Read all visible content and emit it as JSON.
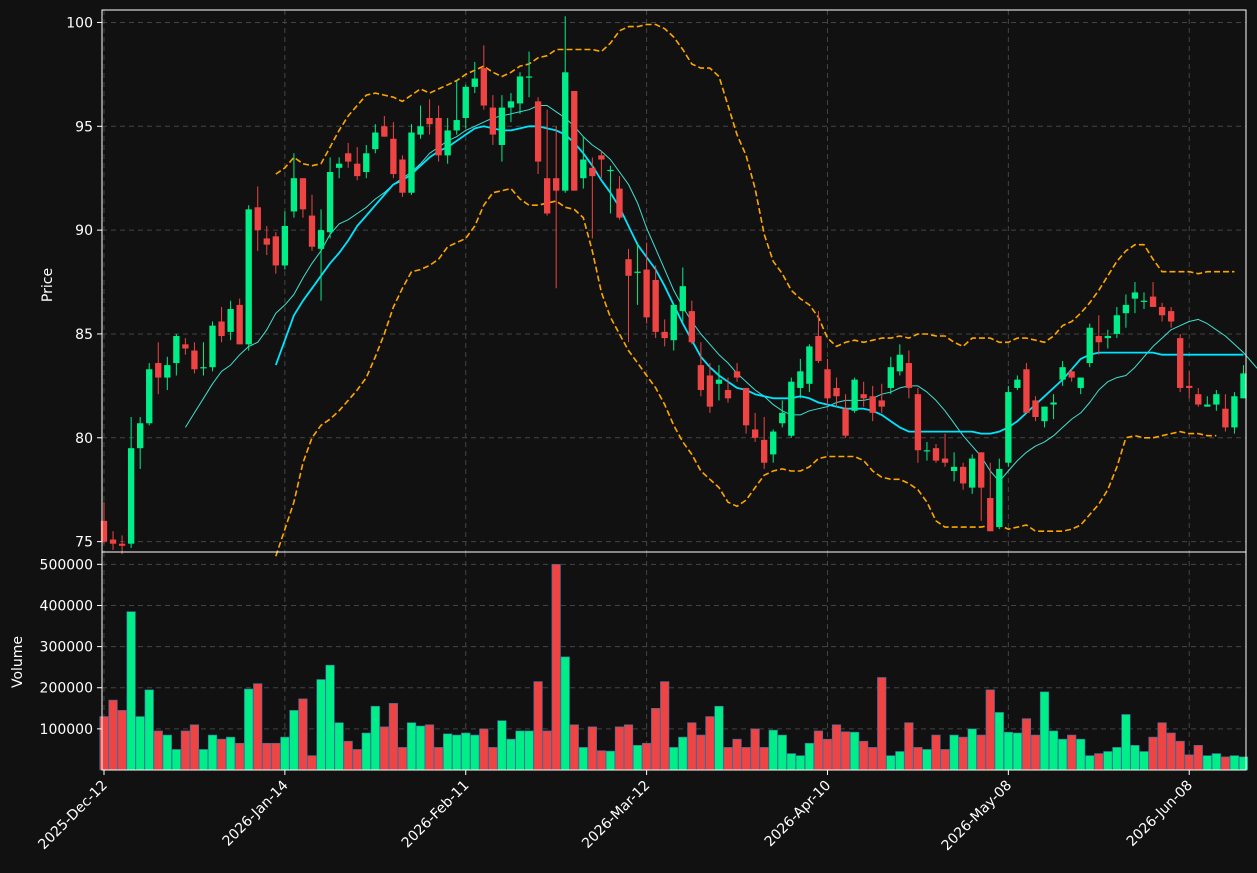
{
  "chart_data": {
    "type": "candlestick",
    "title": "",
    "price_panel": {
      "ylabel": "Price",
      "ylim": [
        74.5,
        100.6
      ],
      "yticks": [
        75,
        80,
        85,
        90,
        95,
        100
      ],
      "grid": true
    },
    "volume_panel": {
      "ylabel": "Volume",
      "ylim": [
        0,
        530000
      ],
      "yticks": [
        100000,
        200000,
        300000,
        400000,
        500000
      ],
      "grid": true
    },
    "x_tick_labels": [
      "2025-Dec-12",
      "2026-Jan-14",
      "2026-Feb-11",
      "2026-Mar-12",
      "2026-Apr-10",
      "2026-May-08",
      "2026-Jun-08"
    ],
    "x_tick_index": [
      0,
      20,
      40,
      60,
      80,
      100,
      120
    ],
    "colors": {
      "up": "#00ee88",
      "down": "#ee4444",
      "ma_fast": "#40e0d0",
      "ma_slow": "#00e5ff",
      "bands": "#ffa500",
      "background": "#111111",
      "grid": "#444444"
    },
    "ohlcv": [
      [
        76.0,
        76.9,
        74.9,
        75.0,
        130000
      ],
      [
        75.1,
        75.5,
        74.6,
        74.9,
        170000
      ],
      [
        74.9,
        75.3,
        74.4,
        74.8,
        145000
      ],
      [
        74.9,
        81.0,
        74.7,
        79.5,
        385000
      ],
      [
        79.5,
        81.0,
        78.5,
        80.7,
        130000
      ],
      [
        80.7,
        83.6,
        80.6,
        83.3,
        195000
      ],
      [
        83.6,
        84.6,
        82.1,
        82.9,
        95000
      ],
      [
        82.9,
        83.9,
        82.3,
        83.5,
        85000
      ],
      [
        83.6,
        85.0,
        83.0,
        84.9,
        50000
      ],
      [
        84.5,
        84.8,
        84.0,
        84.3,
        95000
      ],
      [
        84.2,
        84.6,
        83.1,
        83.3,
        110000
      ],
      [
        83.4,
        84.6,
        83.0,
        83.4,
        50000
      ],
      [
        83.4,
        85.6,
        83.2,
        85.4,
        85000
      ],
      [
        85.6,
        86.3,
        84.6,
        84.9,
        75000
      ],
      [
        85.1,
        86.6,
        84.7,
        86.2,
        80000
      ],
      [
        86.4,
        86.7,
        84.5,
        84.5,
        65000
      ],
      [
        84.5,
        91.2,
        84.2,
        91.0,
        197000
      ],
      [
        91.1,
        92.1,
        89.0,
        90.0,
        210000
      ],
      [
        89.6,
        90.2,
        88.8,
        89.3,
        65000
      ],
      [
        89.7,
        89.9,
        87.9,
        88.3,
        65000
      ],
      [
        88.3,
        90.9,
        88.1,
        90.2,
        80000
      ],
      [
        90.9,
        93.7,
        90.6,
        92.5,
        145000
      ],
      [
        92.5,
        92.5,
        90.6,
        91.0,
        173000
      ],
      [
        90.7,
        91.7,
        89.0,
        89.2,
        35000
      ],
      [
        89.1,
        91.0,
        86.6,
        90.0,
        220000
      ],
      [
        89.9,
        93.5,
        89.6,
        92.8,
        255000
      ],
      [
        93.0,
        93.5,
        92.5,
        93.2,
        115000
      ],
      [
        93.7,
        94.2,
        93.0,
        93.3,
        70000
      ],
      [
        93.2,
        94.0,
        92.4,
        92.6,
        50000
      ],
      [
        92.8,
        94.1,
        92.5,
        93.7,
        90000
      ],
      [
        93.9,
        95.1,
        93.7,
        94.7,
        155000
      ],
      [
        95.0,
        95.5,
        94.5,
        94.5,
        105000
      ],
      [
        94.4,
        95.2,
        92.5,
        92.7,
        162000
      ],
      [
        93.4,
        93.6,
        91.6,
        91.8,
        55000
      ],
      [
        91.8,
        95.1,
        91.7,
        94.7,
        115000
      ],
      [
        94.6,
        96.0,
        94.4,
        95.0,
        107000
      ],
      [
        95.4,
        96.3,
        94.6,
        95.1,
        110000
      ],
      [
        95.4,
        96.0,
        93.3,
        93.6,
        55000
      ],
      [
        93.6,
        95.4,
        93.2,
        94.8,
        88000
      ],
      [
        94.8,
        97.2,
        94.6,
        95.3,
        85000
      ],
      [
        95.4,
        97.0,
        94.9,
        96.9,
        90000
      ],
      [
        96.9,
        98.1,
        96.6,
        97.3,
        85000
      ],
      [
        97.8,
        98.9,
        95.8,
        96.0,
        100000
      ],
      [
        95.9,
        96.5,
        94.1,
        94.6,
        55000
      ],
      [
        94.1,
        96.5,
        93.3,
        95.9,
        120000
      ],
      [
        95.9,
        96.6,
        95.2,
        96.2,
        75000
      ],
      [
        96.1,
        97.6,
        95.6,
        97.4,
        95000
      ],
      [
        97.4,
        98.6,
        96.4,
        97.4,
        95000
      ],
      [
        96.2,
        96.4,
        92.7,
        93.3,
        215000
      ],
      [
        92.5,
        95.8,
        90.7,
        90.8,
        95000
      ],
      [
        92.5,
        95.0,
        87.2,
        91.9,
        500000
      ],
      [
        91.9,
        100.3,
        91.8,
        97.6,
        275000
      ],
      [
        96.7,
        96.7,
        91.9,
        91.9,
        110000
      ],
      [
        92.5,
        94.5,
        92.0,
        93.4,
        55000
      ],
      [
        93.0,
        93.5,
        89.6,
        92.6,
        105000
      ],
      [
        93.6,
        93.8,
        92.5,
        93.4,
        47000
      ],
      [
        92.9,
        93.1,
        90.8,
        92.9,
        46000
      ],
      [
        92.0,
        92.6,
        90.5,
        90.6,
        105000
      ],
      [
        88.6,
        89.1,
        84.6,
        87.8,
        110000
      ],
      [
        88.0,
        89.4,
        86.4,
        88.0,
        60000
      ],
      [
        88.1,
        89.4,
        85.5,
        85.8,
        65000
      ],
      [
        87.6,
        88.3,
        84.8,
        85.1,
        150000
      ],
      [
        85.1,
        85.7,
        84.4,
        84.8,
        215000
      ],
      [
        84.7,
        86.2,
        84.2,
        86.4,
        55000
      ],
      [
        86.1,
        88.2,
        85.6,
        87.3,
        80000
      ],
      [
        86.1,
        86.6,
        84.5,
        84.6,
        115000
      ],
      [
        83.5,
        84.6,
        82.0,
        82.3,
        85000
      ],
      [
        83.0,
        83.6,
        81.2,
        81.5,
        130000
      ],
      [
        82.6,
        83.5,
        81.8,
        82.8,
        155000
      ],
      [
        82.3,
        82.9,
        81.7,
        81.9,
        55000
      ],
      [
        83.2,
        83.6,
        82.7,
        82.9,
        75000
      ],
      [
        82.4,
        82.4,
        80.2,
        80.6,
        55000
      ],
      [
        80.4,
        81.2,
        79.8,
        80.0,
        100000
      ],
      [
        79.9,
        81.0,
        78.5,
        78.8,
        55000
      ],
      [
        79.2,
        80.4,
        78.8,
        80.3,
        97000
      ],
      [
        80.7,
        81.8,
        80.5,
        81.2,
        85000
      ],
      [
        80.1,
        82.9,
        80.0,
        82.7,
        40000
      ],
      [
        82.4,
        83.8,
        81.9,
        83.2,
        35000
      ],
      [
        82.6,
        84.5,
        82.2,
        84.4,
        65000
      ],
      [
        84.9,
        86.1,
        83.6,
        83.7,
        95000
      ],
      [
        83.3,
        83.8,
        81.6,
        81.9,
        75000
      ],
      [
        82.4,
        82.9,
        81.5,
        82.0,
        110000
      ],
      [
        81.4,
        82.1,
        80.0,
        80.1,
        93000
      ],
      [
        81.3,
        82.9,
        81.2,
        82.8,
        92000
      ],
      [
        82.1,
        82.7,
        81.5,
        81.9,
        70000
      ],
      [
        82.0,
        82.5,
        80.8,
        81.2,
        55000
      ],
      [
        81.8,
        82.6,
        81.2,
        81.5,
        225000
      ],
      [
        82.4,
        83.9,
        82.1,
        83.4,
        35000
      ],
      [
        83.2,
        84.5,
        83.0,
        84.0,
        45000
      ],
      [
        83.6,
        84.2,
        81.9,
        82.4,
        115000
      ],
      [
        82.1,
        82.4,
        78.8,
        79.4,
        55000
      ],
      [
        79.4,
        79.8,
        78.9,
        79.4,
        50000
      ],
      [
        79.5,
        79.7,
        78.8,
        78.9,
        85000
      ],
      [
        79.0,
        80.2,
        78.6,
        78.8,
        50000
      ],
      [
        78.4,
        79.3,
        77.9,
        78.6,
        85000
      ],
      [
        78.6,
        78.8,
        77.5,
        77.8,
        80000
      ],
      [
        77.6,
        79.2,
        77.3,
        79.0,
        100000
      ],
      [
        79.3,
        79.3,
        76.0,
        77.6,
        85000
      ],
      [
        77.1,
        78.8,
        75.5,
        75.5,
        195000
      ],
      [
        75.7,
        79.0,
        75.6,
        78.5,
        140000
      ],
      [
        78.8,
        82.5,
        78.6,
        82.2,
        92000
      ],
      [
        82.4,
        83.0,
        82.3,
        82.8,
        90000
      ],
      [
        83.3,
        83.6,
        81.2,
        81.2,
        125000
      ],
      [
        81.8,
        82.0,
        80.8,
        81.0,
        85000
      ],
      [
        80.8,
        81.5,
        80.5,
        81.5,
        190000
      ],
      [
        81.6,
        82.1,
        80.9,
        81.7,
        95000
      ],
      [
        82.8,
        83.7,
        82.5,
        83.4,
        75000
      ],
      [
        83.2,
        83.3,
        82.7,
        82.9,
        85000
      ],
      [
        82.4,
        82.9,
        82.1,
        82.9,
        75000
      ],
      [
        83.6,
        85.5,
        83.4,
        85.3,
        35000
      ],
      [
        84.9,
        85.9,
        84.0,
        84.6,
        40000
      ],
      [
        84.8,
        85.2,
        84.3,
        84.9,
        45000
      ],
      [
        85.0,
        86.3,
        84.8,
        85.9,
        55000
      ],
      [
        86.0,
        86.9,
        85.3,
        86.4,
        135000
      ],
      [
        86.7,
        87.5,
        86.0,
        87.0,
        60000
      ],
      [
        86.6,
        87.0,
        86.2,
        86.6,
        45000
      ],
      [
        86.8,
        87.5,
        86.4,
        86.3,
        80000
      ],
      [
        86.3,
        86.5,
        85.6,
        85.9,
        115000
      ],
      [
        86.1,
        86.3,
        85.3,
        85.6,
        90000
      ],
      [
        84.8,
        85.0,
        82.2,
        82.4,
        70000
      ],
      [
        82.5,
        83.2,
        81.9,
        82.4,
        37000
      ],
      [
        82.1,
        82.4,
        81.5,
        81.6,
        60000
      ],
      [
        81.5,
        82.0,
        81.5,
        81.6,
        35000
      ],
      [
        81.6,
        82.3,
        81.3,
        82.1,
        40000
      ],
      [
        81.4,
        82.1,
        80.3,
        80.5,
        32000
      ],
      [
        80.5,
        82.2,
        80.2,
        82.0,
        35000
      ],
      [
        81.9,
        83.5,
        81.9,
        83.1,
        32000
      ]
    ],
    "ma_fast": [
      null,
      null,
      null,
      null,
      null,
      null,
      null,
      null,
      null,
      80.5,
      81.2,
      81.9,
      82.6,
      83.2,
      83.5,
      84.0,
      84.4,
      84.6,
      85.2,
      86.0,
      86.4,
      86.9,
      87.7,
      88.4,
      89.0,
      89.8,
      90.3,
      90.5,
      90.8,
      91.1,
      91.5,
      91.8,
      92.2,
      92.5,
      92.8,
      93.2,
      93.7,
      94.0,
      94.3,
      94.5,
      94.8,
      95.0,
      95.2,
      95.4,
      95.5,
      95.6,
      95.7,
      95.8,
      96.0,
      96.0,
      95.7,
      95.4,
      95.0,
      94.5,
      94.1,
      93.8,
      93.4,
      92.8,
      92.2,
      91.3,
      90.1,
      89.1,
      88.1,
      87.1,
      86.3,
      85.6,
      85.0,
      84.5,
      84.0,
      83.6,
      83.1,
      82.7,
      82.3,
      82.0,
      81.6,
      81.3,
      81.1,
      81.1,
      81.3,
      81.4,
      81.5,
      81.7,
      81.8,
      81.8,
      81.8,
      81.9,
      82.1,
      82.2,
      82.4,
      82.5,
      82.5,
      82.2,
      81.8,
      81.3,
      80.7,
      80.1,
      79.6,
      79.1,
      78.4,
      77.9,
      78.4,
      78.9,
      79.3,
      79.6,
      79.8,
      80.1,
      80.5,
      80.9,
      81.2,
      81.7,
      82.3,
      82.7,
      82.9,
      83.0,
      83.4,
      83.9,
      84.4,
      84.8,
      85.2,
      85.4,
      85.6,
      85.7,
      85.5,
      85.2,
      84.9,
      84.5,
      84.1,
      83.6,
      83.1,
      82.7
    ],
    "ma_slow": [
      null,
      null,
      null,
      null,
      null,
      null,
      null,
      null,
      null,
      null,
      null,
      null,
      null,
      null,
      null,
      null,
      null,
      null,
      null,
      83.5,
      84.7,
      85.9,
      86.6,
      87.2,
      87.8,
      88.4,
      88.9,
      89.5,
      90.2,
      90.7,
      91.2,
      91.7,
      92.2,
      92.4,
      92.7,
      93.1,
      93.5,
      93.8,
      94.0,
      94.3,
      94.6,
      94.9,
      95.0,
      94.9,
      94.8,
      94.8,
      94.9,
      95.0,
      95.0,
      94.9,
      94.8,
      94.6,
      94.2,
      93.7,
      93.1,
      92.4,
      91.8,
      91.1,
      90.2,
      89.3,
      88.7,
      88.1,
      87.3,
      86.4,
      85.5,
      84.7,
      83.9,
      83.4,
      83.0,
      82.7,
      82.4,
      82.3,
      82.1,
      82.0,
      81.9,
      81.9,
      81.9,
      82.0,
      81.9,
      81.7,
      81.6,
      81.5,
      81.4,
      81.4,
      81.4,
      81.3,
      81.1,
      80.8,
      80.5,
      80.3,
      80.3,
      80.3,
      80.3,
      80.3,
      80.3,
      80.3,
      80.3,
      80.2,
      80.2,
      80.3,
      80.5,
      80.8,
      81.2,
      81.6,
      82.0,
      82.4,
      82.8,
      83.3,
      83.8,
      84.0,
      84.1,
      84.1,
      84.1,
      84.1,
      84.1,
      84.1,
      84.1,
      84.0,
      84.0,
      84.0,
      84.0,
      84.0,
      84.0,
      84.0,
      84.0,
      84.0,
      84.0
    ],
    "upper_band": [
      null,
      null,
      null,
      null,
      null,
      null,
      null,
      null,
      null,
      null,
      null,
      null,
      null,
      null,
      null,
      null,
      null,
      null,
      null,
      92.7,
      93.0,
      93.5,
      93.2,
      93.1,
      93.2,
      94.0,
      94.8,
      95.5,
      96.0,
      96.5,
      96.6,
      96.5,
      96.4,
      96.2,
      96.5,
      96.8,
      96.6,
      96.8,
      97.0,
      97.2,
      97.5,
      97.7,
      97.9,
      97.6,
      97.4,
      97.6,
      97.9,
      98.0,
      98.3,
      98.4,
      98.7,
      98.7,
      98.7,
      98.7,
      98.7,
      98.6,
      99.0,
      99.6,
      99.8,
      99.8,
      99.9,
      99.9,
      99.7,
      99.3,
      98.7,
      98.0,
      97.8,
      97.8,
      97.4,
      96.0,
      94.6,
      93.6,
      92.0,
      89.8,
      88.5,
      87.9,
      87.1,
      86.7,
      86.4,
      85.8,
      84.8,
      84.4,
      84.6,
      84.7,
      84.6,
      84.7,
      84.8,
      84.8,
      84.9,
      84.8,
      85.0,
      85.0,
      84.9,
      84.9,
      84.6,
      84.4,
      84.8,
      84.8,
      84.8,
      84.6,
      84.6,
      84.8,
      84.8,
      84.7,
      84.6,
      84.9,
      85.4,
      85.6,
      86.0,
      86.5,
      87.1,
      87.8,
      88.5,
      89.0,
      89.3,
      89.3,
      88.6,
      88.0,
      88.0,
      88.0,
      88.0,
      87.9,
      88.0,
      88.0,
      88.0,
      88.0
    ],
    "lower_band": [
      null,
      null,
      null,
      null,
      null,
      null,
      null,
      null,
      null,
      null,
      null,
      null,
      null,
      null,
      null,
      null,
      null,
      null,
      null,
      74.3,
      75.6,
      76.9,
      78.8,
      80.0,
      80.6,
      80.9,
      81.3,
      81.8,
      82.3,
      82.9,
      83.9,
      85.0,
      86.3,
      87.2,
      88.0,
      88.1,
      88.3,
      88.6,
      89.2,
      89.4,
      89.6,
      90.2,
      91.2,
      91.8,
      91.9,
      92.0,
      91.5,
      91.2,
      91.2,
      91.3,
      91.4,
      91.1,
      91.0,
      90.6,
      89.0,
      87.0,
      85.8,
      85.0,
      84.2,
      83.6,
      83.0,
      82.4,
      81.6,
      80.6,
      79.8,
      79.2,
      78.4,
      78.0,
      77.6,
      76.9,
      76.7,
      77.0,
      77.6,
      78.2,
      78.4,
      78.5,
      78.4,
      78.4,
      78.6,
      79.0,
      79.1,
      79.1,
      79.1,
      79.1,
      78.9,
      78.4,
      78.1,
      78.0,
      78.0,
      77.8,
      77.5,
      76.9,
      76.0,
      75.7,
      75.7,
      75.7,
      75.7,
      75.7,
      75.8,
      75.8,
      75.6,
      75.7,
      75.8,
      75.5,
      75.5,
      75.5,
      75.5,
      75.6,
      75.8,
      76.3,
      76.8,
      77.5,
      78.6,
      80.0,
      80.1,
      80.0,
      80.0,
      80.1,
      80.2,
      80.3,
      80.2,
      80.2,
      80.1,
      80.1
    ]
  }
}
